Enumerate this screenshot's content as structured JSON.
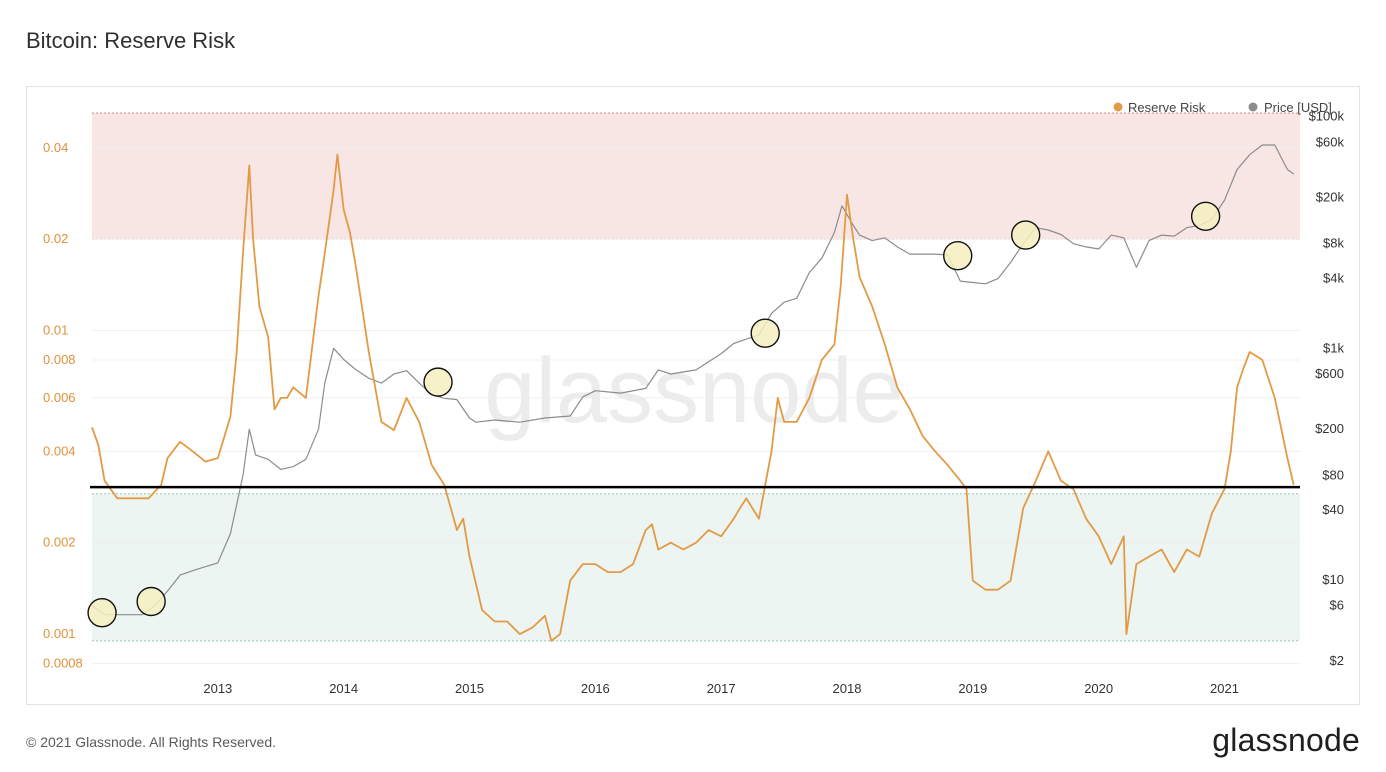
{
  "header": {
    "title": "Bitcoin: Reserve Risk"
  },
  "footer": {
    "copyright": "© 2021 Glassnode. All Rights Reserved.",
    "logo": "glassnode"
  },
  "watermark": "glassnode",
  "colors": {
    "reserve_risk": "#e39a45",
    "price": "#8c8c8c",
    "red_zone": "#f8e6e5",
    "green_zone": "#ecf5f1",
    "red_line": "#e57f7f",
    "green_line": "#96c9b4",
    "hline": "#000000",
    "marker_fill": "#f6efc1"
  },
  "chart_data": {
    "type": "line",
    "title": "Bitcoin: Reserve Risk",
    "legend": {
      "placement": "top-right",
      "items": [
        "Reserve Risk",
        "Price [USD]"
      ]
    },
    "x_ticks": [
      "2013",
      "2014",
      "2015",
      "2016",
      "2017",
      "2018",
      "2019",
      "2020",
      "2021"
    ],
    "x_range": [
      2012.0,
      2021.6
    ],
    "y_left": {
      "scale": "log",
      "range": [
        0.00075,
        0.062
      ],
      "ticks": [
        "0.04",
        "0.02",
        "0.01",
        "0.008",
        "0.006",
        "0.004",
        "0.002",
        "0.001",
        "0.0008"
      ]
    },
    "y_right": {
      "scale": "log",
      "range": [
        1.6,
        170000
      ],
      "ticks": [
        "$100k",
        "$60k",
        "$20k",
        "$8k",
        "$4k",
        "$1k",
        "$600",
        "$200",
        "$80",
        "$40",
        "$10",
        "$6",
        "$2"
      ]
    },
    "zones": {
      "red": [
        0.02,
        0.052
      ],
      "green": [
        0.00095,
        0.0029
      ]
    },
    "reference_line": 0.00305,
    "series": [
      {
        "name": "Reserve Risk",
        "axis": "left",
        "x": [
          2012.0,
          2012.05,
          2012.1,
          2012.2,
          2012.3,
          2012.45,
          2012.55,
          2012.6,
          2012.7,
          2012.8,
          2012.9,
          2013.0,
          2013.1,
          2013.15,
          2013.2,
          2013.25,
          2013.28,
          2013.33,
          2013.4,
          2013.45,
          2013.5,
          2013.55,
          2013.6,
          2013.7,
          2013.8,
          2013.85,
          2013.92,
          2013.95,
          2014.0,
          2014.05,
          2014.1,
          2014.2,
          2014.3,
          2014.4,
          2014.5,
          2014.6,
          2014.7,
          2014.8,
          2014.9,
          2014.95,
          2015.0,
          2015.1,
          2015.2,
          2015.3,
          2015.4,
          2015.5,
          2015.6,
          2015.65,
          2015.72,
          2015.8,
          2015.9,
          2016.0,
          2016.1,
          2016.2,
          2016.3,
          2016.4,
          2016.45,
          2016.5,
          2016.6,
          2016.7,
          2016.8,
          2016.9,
          2017.0,
          2017.1,
          2017.15,
          2017.2,
          2017.3,
          2017.4,
          2017.45,
          2017.5,
          2017.6,
          2017.7,
          2017.8,
          2017.9,
          2017.95,
          2018.0,
          2018.05,
          2018.1,
          2018.2,
          2018.3,
          2018.4,
          2018.5,
          2018.6,
          2018.7,
          2018.8,
          2018.9,
          2018.95,
          2019.0,
          2019.1,
          2019.2,
          2019.3,
          2019.4,
          2019.5,
          2019.6,
          2019.7,
          2019.8,
          2019.9,
          2020.0,
          2020.1,
          2020.2,
          2020.22,
          2020.3,
          2020.4,
          2020.5,
          2020.6,
          2020.7,
          2020.8,
          2020.9,
          2021.0,
          2021.05,
          2021.1,
          2021.15,
          2021.2,
          2021.3,
          2021.4,
          2021.5,
          2021.55
        ],
        "y": [
          0.0048,
          0.0042,
          0.0032,
          0.0028,
          0.0028,
          0.0028,
          0.0031,
          0.0038,
          0.0043,
          0.004,
          0.0037,
          0.0038,
          0.0052,
          0.0085,
          0.018,
          0.035,
          0.02,
          0.012,
          0.0095,
          0.0055,
          0.006,
          0.006,
          0.0065,
          0.006,
          0.013,
          0.018,
          0.029,
          0.038,
          0.025,
          0.021,
          0.016,
          0.0085,
          0.005,
          0.0047,
          0.006,
          0.005,
          0.0036,
          0.0031,
          0.0022,
          0.0024,
          0.0018,
          0.0012,
          0.0011,
          0.0011,
          0.001,
          0.00105,
          0.00115,
          0.00095,
          0.001,
          0.0015,
          0.0017,
          0.0017,
          0.0016,
          0.0016,
          0.0017,
          0.0022,
          0.0023,
          0.0019,
          0.002,
          0.0019,
          0.002,
          0.0022,
          0.0021,
          0.0024,
          0.0026,
          0.0028,
          0.0024,
          0.004,
          0.006,
          0.005,
          0.005,
          0.006,
          0.008,
          0.009,
          0.014,
          0.028,
          0.02,
          0.015,
          0.012,
          0.009,
          0.0065,
          0.0055,
          0.0045,
          0.004,
          0.0036,
          0.0032,
          0.003,
          0.0015,
          0.0014,
          0.0014,
          0.0015,
          0.0026,
          0.0032,
          0.004,
          0.0032,
          0.003,
          0.0024,
          0.0021,
          0.0017,
          0.0021,
          0.001,
          0.0017,
          0.0018,
          0.0019,
          0.0016,
          0.0019,
          0.0018,
          0.0025,
          0.003,
          0.004,
          0.0065,
          0.0075,
          0.0085,
          0.008,
          0.006,
          0.0038,
          0.0031
        ]
      },
      {
        "name": "Price [USD]",
        "axis": "right",
        "x": [
          2012.0,
          2012.1,
          2012.2,
          2012.3,
          2012.4,
          2012.5,
          2012.6,
          2012.7,
          2012.8,
          2012.9,
          2013.0,
          2013.1,
          2013.2,
          2013.25,
          2013.3,
          2013.4,
          2013.5,
          2013.6,
          2013.7,
          2013.8,
          2013.85,
          2013.92,
          2014.0,
          2014.1,
          2014.2,
          2014.3,
          2014.4,
          2014.5,
          2014.6,
          2014.7,
          2014.8,
          2014.9,
          2015.0,
          2015.05,
          2015.2,
          2015.4,
          2015.6,
          2015.8,
          2015.9,
          2016.0,
          2016.2,
          2016.4,
          2016.5,
          2016.6,
          2016.8,
          2017.0,
          2017.1,
          2017.2,
          2017.3,
          2017.4,
          2017.5,
          2017.6,
          2017.7,
          2017.8,
          2017.9,
          2017.96,
          2018.05,
          2018.1,
          2018.2,
          2018.3,
          2018.4,
          2018.5,
          2018.6,
          2018.7,
          2018.8,
          2018.9,
          2019.0,
          2019.1,
          2019.2,
          2019.3,
          2019.4,
          2019.5,
          2019.6,
          2019.7,
          2019.8,
          2019.9,
          2020.0,
          2020.1,
          2020.2,
          2020.3,
          2020.4,
          2020.5,
          2020.6,
          2020.7,
          2020.8,
          2020.9,
          2021.0,
          2021.1,
          2021.2,
          2021.3,
          2021.4,
          2021.5,
          2021.55
        ],
        "y": [
          6,
          5,
          5,
          5,
          5,
          6,
          8,
          11,
          12,
          13,
          14,
          25,
          80,
          200,
          120,
          110,
          90,
          95,
          110,
          200,
          500,
          1000,
          800,
          650,
          550,
          500,
          600,
          640,
          500,
          400,
          370,
          360,
          250,
          230,
          240,
          230,
          250,
          260,
          380,
          430,
          410,
          450,
          650,
          600,
          650,
          900,
          1100,
          1200,
          1300,
          2000,
          2500,
          2700,
          4500,
          6000,
          10000,
          17000,
          11500,
          9500,
          8500,
          9000,
          7500,
          6500,
          6500,
          6500,
          6400,
          3800,
          3700,
          3600,
          4000,
          5500,
          8000,
          11000,
          10500,
          9600,
          8000,
          7500,
          7200,
          9500,
          9000,
          5000,
          8500,
          9500,
          9300,
          11000,
          11500,
          13000,
          19000,
          35000,
          47000,
          57000,
          57000,
          35000,
          32000
        ]
      }
    ],
    "highlight_markers": [
      {
        "series": "Price [USD]",
        "x": 2012.08,
        "y": 5.2
      },
      {
        "series": "Price [USD]",
        "x": 2012.47,
        "y": 6.5
      },
      {
        "series": "Price [USD]",
        "x": 2014.75,
        "y": 510
      },
      {
        "series": "Price [USD]",
        "x": 2017.35,
        "y": 1350
      },
      {
        "series": "Price [USD]",
        "x": 2018.88,
        "y": 6300
      },
      {
        "series": "Price [USD]",
        "x": 2019.42,
        "y": 9500
      },
      {
        "series": "Price [USD]",
        "x": 2020.85,
        "y": 13800
      }
    ]
  }
}
